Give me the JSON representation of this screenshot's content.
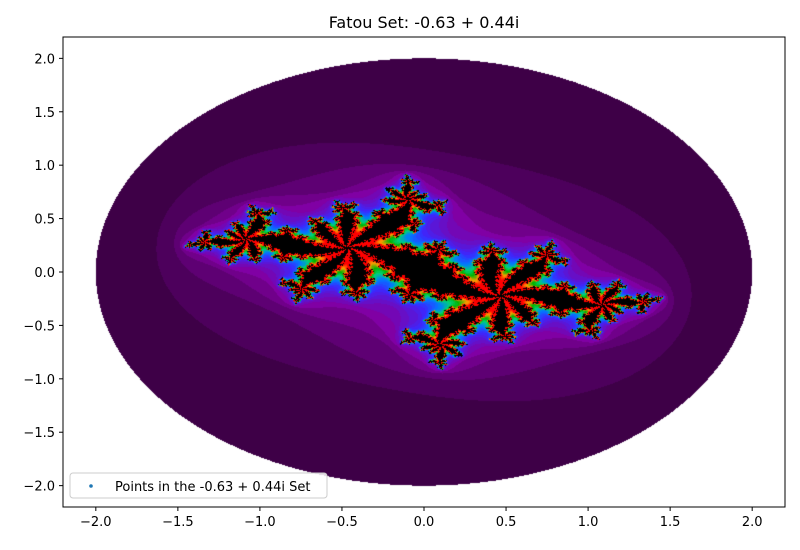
{
  "chart_data": {
    "type": "heatmap",
    "title": "Fatou Set: -0.63 + 0.44i",
    "c": {
      "re": -0.63,
      "im": 0.44
    },
    "xlabel": "",
    "ylabel": "",
    "xlim": [
      -2.2,
      2.2
    ],
    "ylim": [
      -2.2,
      2.2
    ],
    "escape_radius": 2.0,
    "xticks": [
      -2.0,
      -1.5,
      -1.0,
      -0.5,
      0.0,
      0.5,
      1.0,
      1.5,
      2.0
    ],
    "yticks": [
      -2.0,
      -1.5,
      -1.0,
      -0.5,
      0.0,
      0.5,
      1.0,
      1.5,
      2.0
    ],
    "xtick_labels": [
      "−2.0",
      "−1.5",
      "−1.0",
      "−0.5",
      "0.0",
      "0.5",
      "1.0",
      "1.5",
      "2.0"
    ],
    "ytick_labels": [
      "−2.0",
      "−1.5",
      "−1.0",
      "−0.5",
      "0.0",
      "0.5",
      "1.0",
      "1.5",
      "2.0"
    ],
    "grid": false,
    "legend": {
      "placement": "lower-left",
      "entries": [
        "Points in the -0.63 + 0.44i Set"
      ]
    },
    "colormap": "gnuplot2",
    "colors": {
      "band_outer": "#3e0047",
      "band_2": "#4d005c",
      "band_3": "#5e0073",
      "band_4": "#70008a",
      "band_5": "#8000a4",
      "interior": "#000000",
      "marker": "#1f77b4"
    }
  }
}
